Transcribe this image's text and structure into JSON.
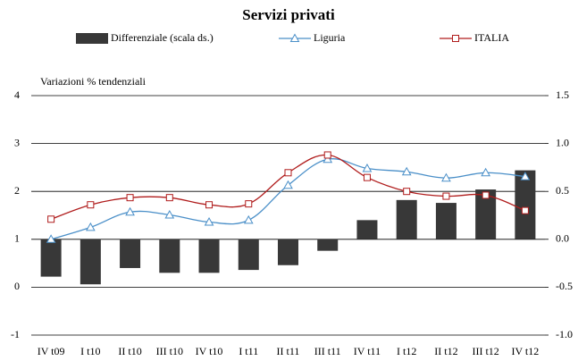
{
  "chart_data": {
    "type": "bar-line",
    "title": "Servizi privati",
    "annotation": "Variazioni % tendenziali",
    "categories": [
      "IV t09",
      "I t10",
      "II t10",
      "III t10",
      "IV t10",
      "I t11",
      "II t11",
      "III t11",
      "IV t11",
      "I t12",
      "II t12",
      "III t12",
      "IV t12"
    ],
    "series": [
      {
        "name": "Differenziale (scala ds.)",
        "type": "bar",
        "axis": "y2",
        "color": "#383838",
        "values": [
          -0.39,
          -0.47,
          -0.3,
          -0.35,
          -0.35,
          -0.32,
          -0.27,
          -0.12,
          0.2,
          0.41,
          0.38,
          0.52,
          0.72
        ]
      },
      {
        "name": "Liguria",
        "type": "line",
        "marker": "triangle",
        "color": "#4a8fc8",
        "values": [
          1.0,
          1.25,
          1.57,
          1.51,
          1.36,
          1.4,
          2.13,
          2.67,
          2.48,
          2.41,
          2.28,
          2.39,
          2.31
        ]
      },
      {
        "name": "ITALIA",
        "type": "line",
        "marker": "square",
        "color": "#b01c1c",
        "values": [
          1.42,
          1.72,
          1.87,
          1.87,
          1.72,
          1.74,
          2.39,
          2.76,
          2.29,
          2.0,
          1.9,
          1.92,
          1.6
        ]
      }
    ],
    "ylim": [
      -1,
      4
    ],
    "yticks": [
      -1,
      0,
      1,
      2,
      3,
      4
    ],
    "y2lim": [
      -1,
      1.5
    ],
    "y2ticks": [
      {
        "value": -1,
        "label": "-1.0"
      },
      -0.5,
      {
        "value": 0,
        "label": "0.0"
      },
      0.5,
      {
        "value": 1,
        "label": "1.0"
      },
      1.5
    ],
    "grid": true,
    "legend": "top"
  }
}
